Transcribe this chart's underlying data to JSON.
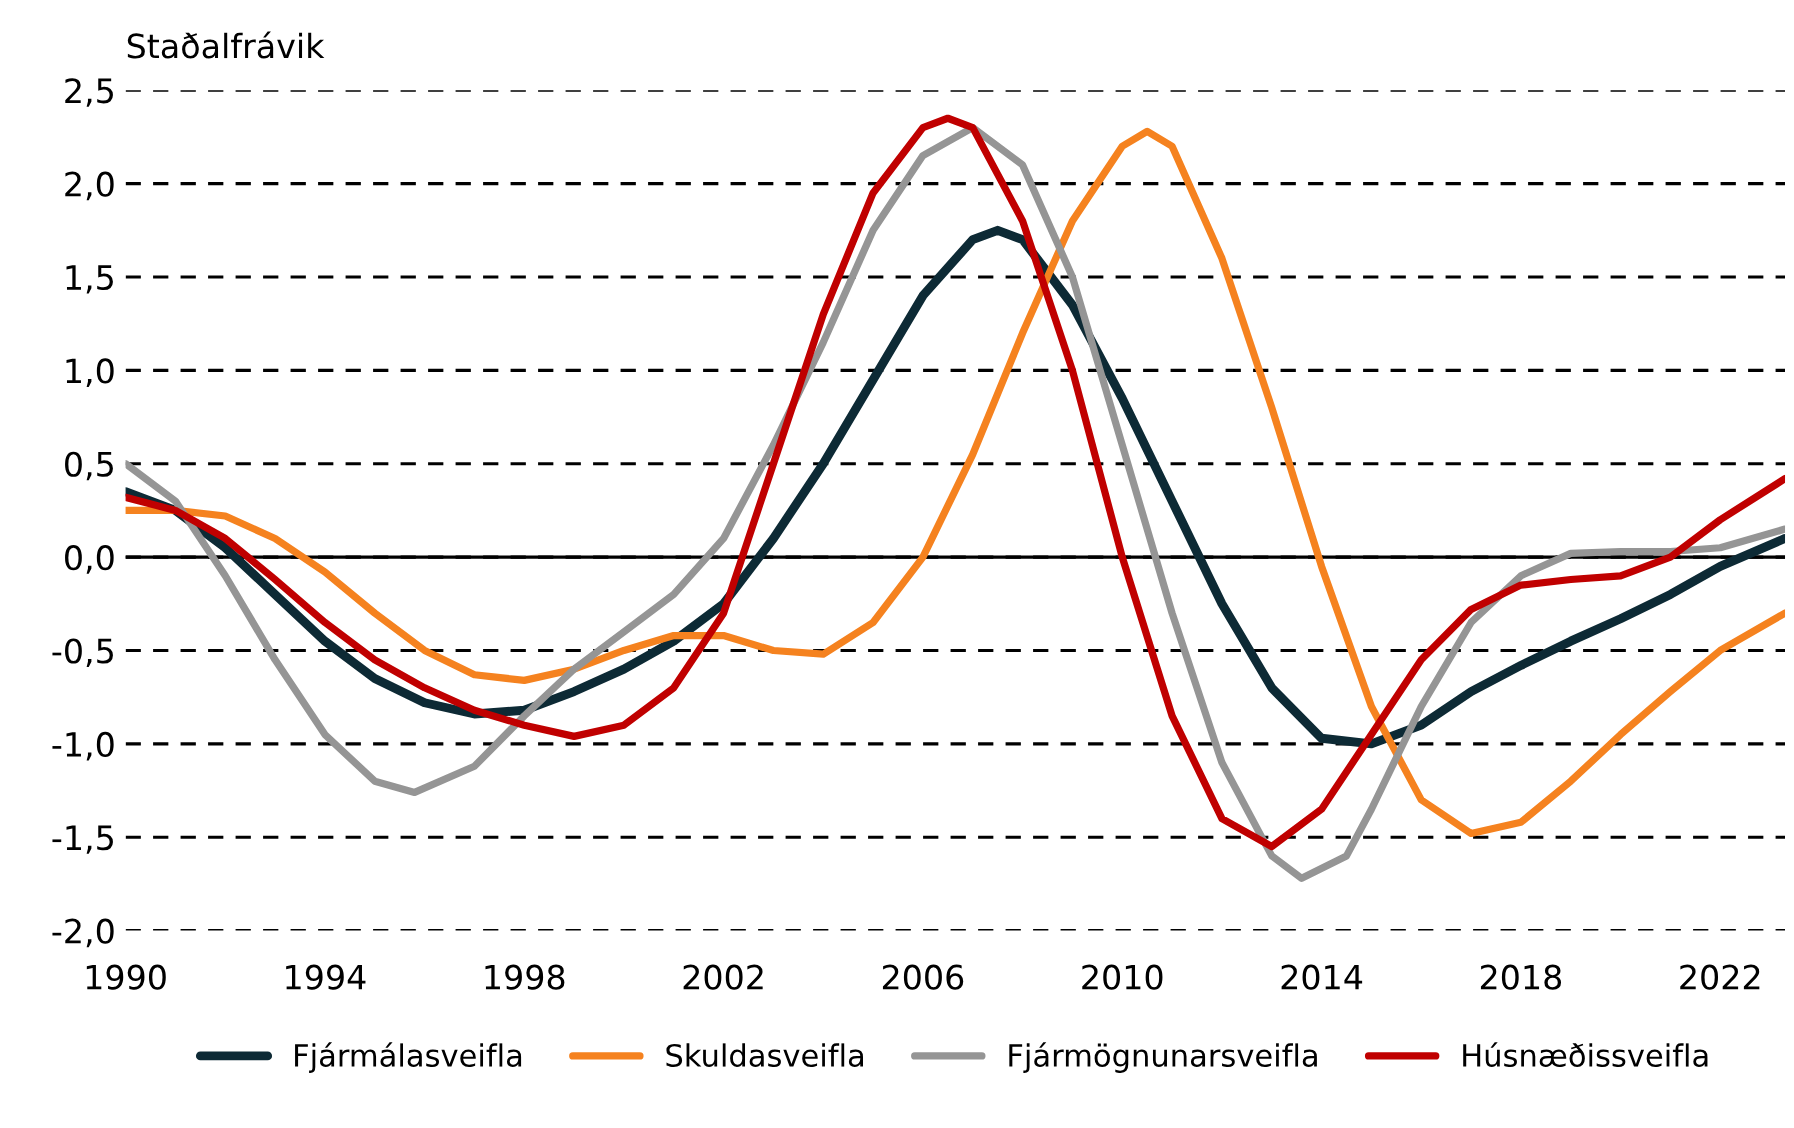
{
  "chart_data": {
    "type": "line",
    "ylabel": "Staðalfrávik",
    "xlim": [
      1990,
      2023.3
    ],
    "xticks": [
      1990,
      1994,
      1998,
      2002,
      2006,
      2010,
      2014,
      2018,
      2022
    ],
    "ylim": [
      -2.0,
      2.5
    ],
    "yticks": [
      {
        "value": -2.0,
        "label": "-2,0"
      },
      {
        "value": -1.5,
        "label": "-1,5"
      },
      {
        "value": -1.0,
        "label": "-1,0"
      },
      {
        "value": -0.5,
        "label": "-0,5"
      },
      {
        "value": 0.0,
        "label": "0,0"
      },
      {
        "value": 0.5,
        "label": "0,5"
      },
      {
        "value": 1.0,
        "label": "1,0"
      },
      {
        "value": 1.5,
        "label": "1,5"
      },
      {
        "value": 2.0,
        "label": "2,0"
      },
      {
        "value": 2.5,
        "label": "2,5"
      }
    ],
    "grid": "y",
    "legend": "bottom",
    "line_style": "solid",
    "marker": "none",
    "ref_lines": [
      {
        "axis": "y",
        "value": 0,
        "color": "#000000"
      }
    ],
    "series": [
      {
        "name": "Fjármálasveifla",
        "color": "#0d2a35",
        "x": [
          1990,
          1991,
          1992,
          1993,
          1994,
          1995,
          1996,
          1997,
          1998,
          1999,
          2000,
          2001,
          2002,
          2003,
          2004,
          2005,
          2006,
          2007,
          2007.5,
          2008,
          2009,
          2010,
          2011,
          2012,
          2013,
          2014,
          2015,
          2016,
          2017,
          2018,
          2019,
          2020,
          2021,
          2022,
          2023.3
        ],
        "values": [
          0.35,
          0.25,
          0.05,
          -0.2,
          -0.45,
          -0.65,
          -0.78,
          -0.84,
          -0.82,
          -0.72,
          -0.6,
          -0.45,
          -0.25,
          0.1,
          0.5,
          0.95,
          1.4,
          1.7,
          1.75,
          1.7,
          1.35,
          0.85,
          0.3,
          -0.25,
          -0.7,
          -0.97,
          -1.0,
          -0.9,
          -0.72,
          -0.58,
          -0.45,
          -0.33,
          -0.2,
          -0.05,
          0.1
        ]
      },
      {
        "name": "Skuldasveifla",
        "color": "#f5821f",
        "x": [
          1990,
          1991,
          1992,
          1993,
          1994,
          1995,
          1996,
          1997,
          1998,
          1999,
          2000,
          2001,
          2002,
          2003,
          2004,
          2005,
          2006,
          2007,
          2008,
          2009,
          2010,
          2010.5,
          2011,
          2012,
          2013,
          2014,
          2015,
          2016,
          2017,
          2018,
          2019,
          2020,
          2021,
          2022,
          2023.3
        ],
        "values": [
          0.25,
          0.25,
          0.22,
          0.1,
          -0.08,
          -0.3,
          -0.5,
          -0.63,
          -0.66,
          -0.6,
          -0.5,
          -0.42,
          -0.42,
          -0.5,
          -0.52,
          -0.35,
          0.0,
          0.55,
          1.2,
          1.8,
          2.2,
          2.28,
          2.2,
          1.6,
          0.8,
          -0.05,
          -0.8,
          -1.3,
          -1.48,
          -1.42,
          -1.2,
          -0.95,
          -0.72,
          -0.5,
          -0.3
        ]
      },
      {
        "name": "Fjármögnunarsveifla",
        "color": "#959595",
        "x": [
          1990,
          1991,
          1992,
          1993,
          1994,
          1995,
          1995.8,
          1997,
          1998,
          1999,
          2000,
          2001,
          2002,
          2003,
          2004,
          2005,
          2006,
          2007,
          2008,
          2009,
          2010,
          2011,
          2012,
          2013,
          2013.6,
          2014.5,
          2015,
          2016,
          2017,
          2018,
          2019,
          2020,
          2021,
          2022,
          2023.3
        ],
        "values": [
          0.5,
          0.3,
          -0.1,
          -0.55,
          -0.95,
          -1.2,
          -1.26,
          -1.12,
          -0.85,
          -0.6,
          -0.4,
          -0.2,
          0.1,
          0.6,
          1.15,
          1.75,
          2.15,
          2.3,
          2.1,
          1.5,
          0.6,
          -0.3,
          -1.1,
          -1.6,
          -1.72,
          -1.6,
          -1.35,
          -0.8,
          -0.35,
          -0.1,
          0.02,
          0.03,
          0.03,
          0.05,
          0.15
        ]
      },
      {
        "name": "Húsnæðissveifla",
        "color": "#c00000",
        "x": [
          1990,
          1991,
          1992,
          1993,
          1994,
          1995,
          1996,
          1997,
          1998,
          1999,
          2000,
          2001,
          2002,
          2003,
          2004,
          2005,
          2006,
          2006.5,
          2007,
          2008,
          2009,
          2010,
          2011,
          2012,
          2013,
          2014,
          2015,
          2016,
          2017,
          2018,
          2019,
          2020,
          2021,
          2022,
          2023.3
        ],
        "values": [
          0.32,
          0.25,
          0.1,
          -0.12,
          -0.35,
          -0.55,
          -0.7,
          -0.82,
          -0.9,
          -0.96,
          -0.9,
          -0.7,
          -0.3,
          0.5,
          1.3,
          1.95,
          2.3,
          2.35,
          2.3,
          1.8,
          1.0,
          0.0,
          -0.85,
          -1.4,
          -1.55,
          -1.35,
          -0.95,
          -0.55,
          -0.28,
          -0.15,
          -0.12,
          -0.1,
          0.0,
          0.2,
          0.42
        ]
      }
    ]
  }
}
